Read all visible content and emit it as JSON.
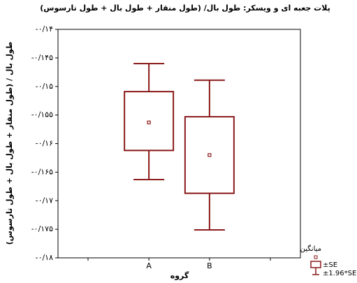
{
  "chart_data": {
    "type": "box",
    "title": "پلات جعبه ای و ویسکر: طول بال/ (طول منقار + طول بال + طول تارسوس)",
    "y_label": "طول بال / (طول منقار + طول بال + طول تارسوس)",
    "x_label": "گروه",
    "categories": [
      "A",
      "B"
    ],
    "mean": [
      -0.1563,
      -0.162
    ],
    "se_lower": [
      -0.1612,
      -0.1687
    ],
    "se_upper": [
      -0.1509,
      -0.1553
    ],
    "ci_lower": [
      -0.1663,
      -0.1751
    ],
    "ci_upper": [
      -0.146,
      -0.1489
    ],
    "color": "#8b1a1a",
    "legend": [
      "میانگین",
      "±SE",
      "±1.96*SE"
    ],
    "ylim": [
      -0.18,
      -0.14
    ],
    "yticks": [
      {
        "value": -0.14,
        "label": "-۰/۱۴"
      },
      {
        "value": -0.145,
        "label": "-۰/۱۴۵"
      },
      {
        "value": -0.15,
        "label": "-۰/۱۵"
      },
      {
        "value": -0.155,
        "label": "-۰/۱۵۵"
      },
      {
        "value": -0.16,
        "label": "-۰/۱۶"
      },
      {
        "value": -0.165,
        "label": "-۰/۱۶۵"
      },
      {
        "value": -0.17,
        "label": "-۰/۱۷"
      },
      {
        "value": -0.175,
        "label": "-۰/۱۷۵"
      },
      {
        "value": -0.18,
        "label": "-۰/۱۸"
      }
    ]
  }
}
